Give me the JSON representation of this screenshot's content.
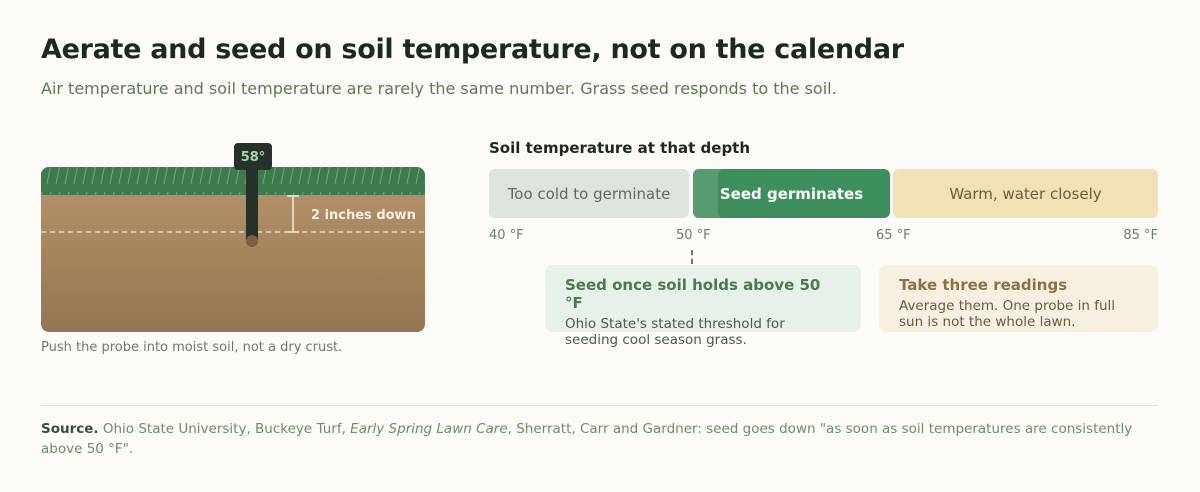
{
  "header": {
    "title": "Aerate and seed on soil temperature, not on the calendar",
    "subtitle": "Air temperature and soil temperature are rarely the same number. Grass seed responds to the soil."
  },
  "illustration": {
    "probe_reading": "58°",
    "depth_label": "2 inches down",
    "caption": "Push the probe into moist soil, not a dry crust."
  },
  "scale": {
    "title": "Soil temperature at that depth",
    "bands": [
      "Too cold to germinate",
      "Seed germinates",
      "Warm, water closely"
    ],
    "ticks": [
      "40 °F",
      "50 °F",
      "65 °F",
      "85 °F"
    ]
  },
  "callouts": [
    {
      "title": "Seed once soil holds above 50 °F",
      "body": "Ohio State's stated threshold for seeding cool season grass."
    },
    {
      "title": "Take three readings",
      "body": "Average them. One probe in full sun is not the whole lawn."
    }
  ],
  "source": {
    "label": "Source.",
    "before": "Ohio State University, Buckeye Turf, ",
    "work": "Early Spring Lawn Care",
    "after": ", Sherratt, Carr and Gardner: seed goes down \"as soon as soil temperatures are consistently above 50 °F\"."
  }
}
